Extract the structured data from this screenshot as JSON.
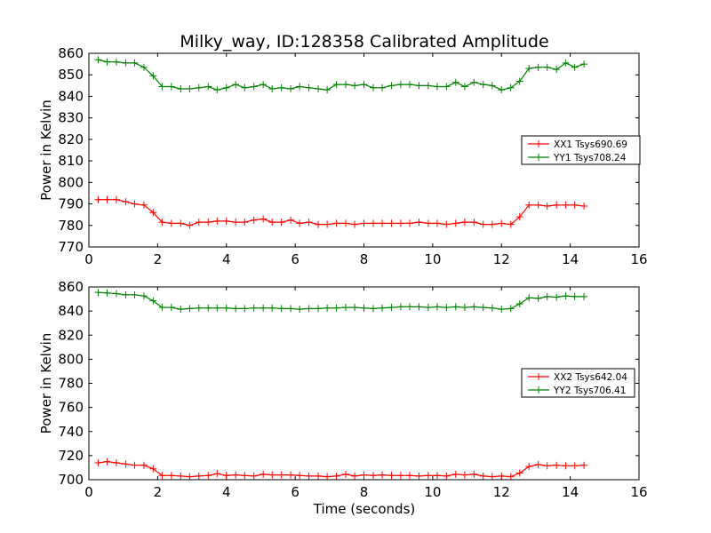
{
  "title": "Milky_way, ID:128358 Calibrated Amplitude",
  "xlabel": "Time (seconds)",
  "colors": {
    "XX": "#ff0000",
    "YY": "#008000"
  },
  "chart_data": [
    {
      "type": "line",
      "xlim": [
        0,
        16
      ],
      "ylim": [
        770,
        860
      ],
      "xticks": [
        0,
        2,
        4,
        6,
        8,
        10,
        12,
        14,
        16
      ],
      "yticks": [
        770,
        780,
        790,
        800,
        810,
        820,
        830,
        840,
        850,
        860
      ],
      "ylabel": "Power in Kelvin",
      "legend_position": "center-right",
      "series": [
        {
          "name": "XX1 Tsys690.69",
          "color": "#ff0000",
          "marker": "+",
          "x": [
            0.27,
            0.53,
            0.8,
            1.07,
            1.33,
            1.6,
            1.87,
            2.13,
            2.4,
            2.67,
            2.93,
            3.2,
            3.47,
            3.73,
            4.0,
            4.27,
            4.53,
            4.8,
            5.07,
            5.33,
            5.6,
            5.87,
            6.13,
            6.4,
            6.67,
            6.93,
            7.2,
            7.47,
            7.73,
            8.0,
            8.27,
            8.53,
            8.8,
            9.07,
            9.33,
            9.6,
            9.87,
            10.13,
            10.4,
            10.67,
            10.93,
            11.2,
            11.47,
            11.73,
            12.0,
            12.27,
            12.53,
            12.8,
            13.07,
            13.33,
            13.6,
            13.87,
            14.13,
            14.4
          ],
          "y": [
            792,
            792,
            792,
            791,
            790,
            789.5,
            786,
            781.5,
            781,
            781,
            780,
            781.5,
            781.5,
            782,
            782,
            781.5,
            781.5,
            782.5,
            783,
            781.5,
            781.5,
            782.5,
            781,
            781.5,
            780.5,
            780.5,
            781,
            781,
            780.5,
            781,
            781,
            781,
            781,
            781,
            781,
            781.5,
            781,
            781,
            780.5,
            781,
            781.5,
            781.5,
            780.5,
            780.5,
            781,
            780.5,
            784,
            789.5,
            789.5,
            789,
            789.5,
            789.5,
            789.5,
            789
          ]
        },
        {
          "name": "YY1 Tsys708.24",
          "color": "#008000",
          "marker": "+",
          "x": [
            0.27,
            0.53,
            0.8,
            1.07,
            1.33,
            1.6,
            1.87,
            2.13,
            2.4,
            2.67,
            2.93,
            3.2,
            3.47,
            3.73,
            4.0,
            4.27,
            4.53,
            4.8,
            5.07,
            5.33,
            5.6,
            5.87,
            6.13,
            6.4,
            6.67,
            6.93,
            7.2,
            7.47,
            7.73,
            8.0,
            8.27,
            8.53,
            8.8,
            9.07,
            9.33,
            9.6,
            9.87,
            10.13,
            10.4,
            10.67,
            10.93,
            11.2,
            11.47,
            11.73,
            12.0,
            12.27,
            12.53,
            12.8,
            13.07,
            13.33,
            13.6,
            13.87,
            14.13,
            14.4
          ],
          "y": [
            857,
            856,
            856,
            855.5,
            855.5,
            853.5,
            849.5,
            844.5,
            844.5,
            843.5,
            843.5,
            844,
            844.5,
            843,
            844,
            845.5,
            844,
            844.5,
            845.5,
            843.5,
            844,
            843.5,
            844.5,
            844,
            843.5,
            843,
            845.5,
            845.5,
            845,
            845.5,
            844,
            844,
            845,
            845.5,
            845.5,
            845,
            845,
            844.5,
            844.5,
            846.5,
            844.5,
            846.5,
            845.5,
            845,
            843,
            844,
            847,
            853,
            853.5,
            853.5,
            852.5,
            855.5,
            853.5,
            855
          ]
        }
      ]
    },
    {
      "type": "line",
      "xlim": [
        0,
        16
      ],
      "ylim": [
        700,
        860
      ],
      "xticks": [
        0,
        2,
        4,
        6,
        8,
        10,
        12,
        14,
        16
      ],
      "yticks": [
        700,
        720,
        740,
        760,
        780,
        800,
        820,
        840,
        860
      ],
      "ylabel": "Power in Kelvin",
      "xlabel": "Time (seconds)",
      "legend_position": "center-right",
      "series": [
        {
          "name": "XX2 Tsys642.04",
          "color": "#ff0000",
          "marker": "+",
          "x": [
            0.27,
            0.53,
            0.8,
            1.07,
            1.33,
            1.6,
            1.87,
            2.13,
            2.4,
            2.67,
            2.93,
            3.2,
            3.47,
            3.73,
            4.0,
            4.27,
            4.53,
            4.8,
            5.07,
            5.33,
            5.6,
            5.87,
            6.13,
            6.4,
            6.67,
            6.93,
            7.2,
            7.47,
            7.73,
            8.0,
            8.27,
            8.53,
            8.8,
            9.07,
            9.33,
            9.6,
            9.87,
            10.13,
            10.4,
            10.67,
            10.93,
            11.2,
            11.47,
            11.73,
            12.0,
            12.27,
            12.53,
            12.8,
            13.07,
            13.33,
            13.6,
            13.87,
            14.13,
            14.4
          ],
          "y": [
            714,
            715,
            714,
            713,
            712,
            712,
            709,
            703.5,
            703.5,
            703,
            702.5,
            703,
            703.5,
            705,
            703.5,
            704,
            703.5,
            703,
            704.5,
            704,
            704,
            704,
            703.5,
            703,
            703,
            702.5,
            703,
            704.5,
            703,
            704,
            703.5,
            704,
            703.5,
            703.5,
            703.5,
            703,
            703.5,
            703.5,
            703,
            704.5,
            704,
            704.5,
            703,
            702.5,
            703,
            702.5,
            705.5,
            711,
            712.5,
            711.5,
            712,
            711.5,
            711.5,
            712
          ]
        },
        {
          "name": "YY2 Tsys706.41",
          "color": "#008000",
          "marker": "+",
          "x": [
            0.27,
            0.53,
            0.8,
            1.07,
            1.33,
            1.6,
            1.87,
            2.13,
            2.4,
            2.67,
            2.93,
            3.2,
            3.47,
            3.73,
            4.0,
            4.27,
            4.53,
            4.8,
            5.07,
            5.33,
            5.6,
            5.87,
            6.13,
            6.4,
            6.67,
            6.93,
            7.2,
            7.47,
            7.73,
            8.0,
            8.27,
            8.53,
            8.8,
            9.07,
            9.33,
            9.6,
            9.87,
            10.13,
            10.4,
            10.67,
            10.93,
            11.2,
            11.47,
            11.73,
            12.0,
            12.27,
            12.53,
            12.8,
            13.07,
            13.33,
            13.6,
            13.87,
            14.13,
            14.4
          ],
          "y": [
            855.5,
            855,
            854.5,
            853.5,
            853.5,
            852.5,
            848.5,
            843,
            843,
            841.5,
            842,
            842.5,
            842.5,
            842.5,
            842.5,
            842,
            842,
            842.5,
            842.5,
            842.5,
            842,
            842,
            841.5,
            842,
            842,
            842.5,
            842.5,
            843,
            843,
            842.5,
            842,
            842.5,
            843,
            843.5,
            843.5,
            843.5,
            843,
            843.5,
            843,
            843.5,
            843,
            843.5,
            843,
            842.5,
            841.5,
            842,
            846,
            851,
            850.5,
            852,
            851.5,
            852.5,
            852,
            852
          ]
        }
      ]
    }
  ]
}
